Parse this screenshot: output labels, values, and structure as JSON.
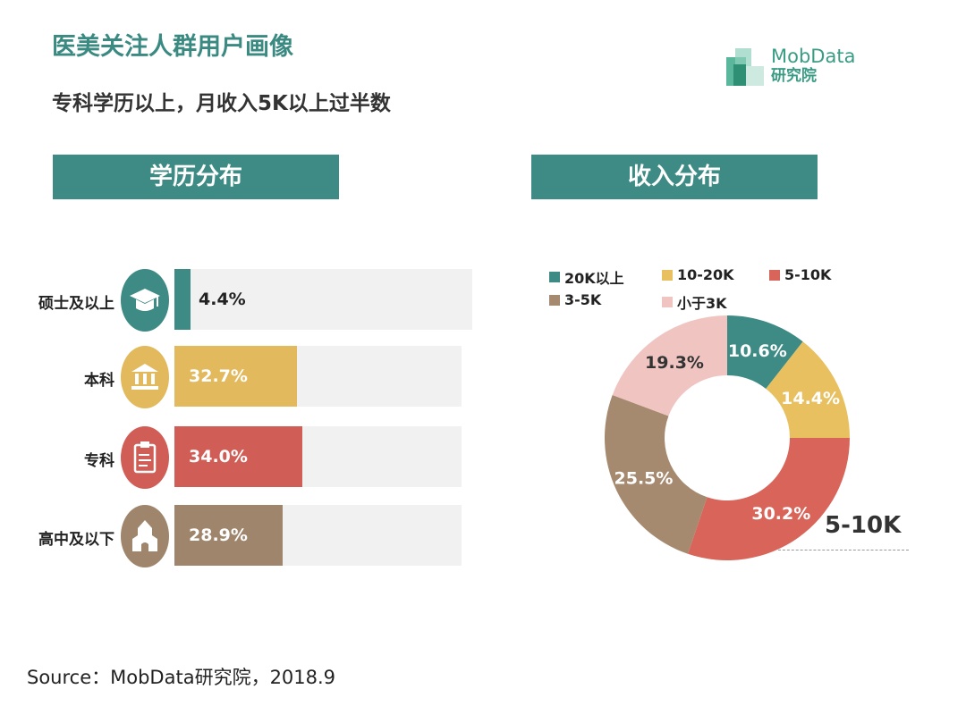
{
  "title": "医美关注人群用户画像",
  "subtitle": "专科学历以上，月收入5K以上过半数",
  "logo": {
    "name": "MobData",
    "sub": "研究院"
  },
  "source": "Source：MobData研究院，2018.9",
  "chart_data": [
    {
      "type": "bar",
      "orientation": "horizontal",
      "title": "学历分布",
      "categories": [
        "硕士及以上",
        "本科",
        "专科",
        "高中及以下"
      ],
      "values": [
        4.4,
        32.7,
        34.0,
        28.9
      ],
      "labels": [
        "4.4%",
        "32.7%",
        "34.0%",
        "28.9%"
      ],
      "colors": [
        "#3d8b84",
        "#e2b95c",
        "#d05e56",
        "#9e856c"
      ],
      "icons": [
        "graduation-cap-icon",
        "university-building-icon",
        "clipboard-icon",
        "school-house-icon"
      ]
    },
    {
      "type": "pie",
      "donut": true,
      "title": "收入分布",
      "categories": [
        "20K以上",
        "10-20K",
        "5-10K",
        "3-5K",
        "小于3K"
      ],
      "values": [
        10.6,
        14.4,
        30.2,
        25.5,
        19.3
      ],
      "labels": [
        "10.6%",
        "14.4%",
        "30.2%",
        "25.5%",
        "19.3%"
      ],
      "colors": [
        "#3d8b84",
        "#e8c060",
        "#d8645a",
        "#a68a70",
        "#f0c4c0"
      ],
      "legend": "top",
      "annotation": "5-10K"
    }
  ]
}
